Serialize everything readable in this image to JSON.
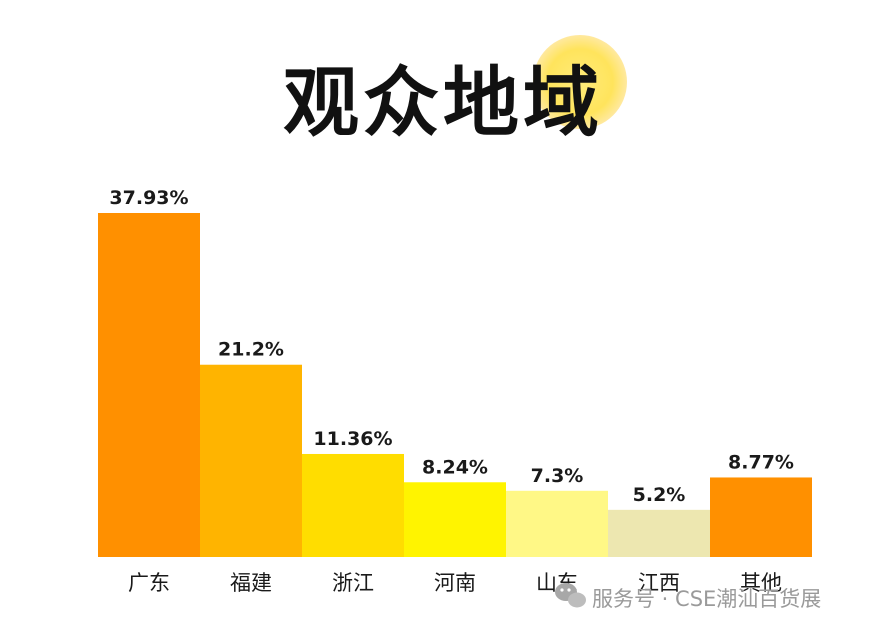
{
  "title": "观众地域",
  "watermark": "服务号 · CSE潮汕百货展",
  "chart_data": {
    "type": "bar",
    "categories": [
      "广东",
      "福建",
      "浙江",
      "河南",
      "山东",
      "江西",
      "其他"
    ],
    "values": [
      37.93,
      21.2,
      11.36,
      8.24,
      7.3,
      5.2,
      8.77
    ],
    "value_labels": [
      "37.93%",
      "21.2%",
      "11.36%",
      "8.24%",
      "7.3%",
      "5.2%",
      "8.77%"
    ],
    "colors": [
      "#FF9000",
      "#FFB400",
      "#FFDD00",
      "#FFF400",
      "#FFF886",
      "#EDE7B0",
      "#FF9000"
    ],
    "title": "观众地域",
    "xlabel": "",
    "ylabel": "",
    "grid": false,
    "legend": "none"
  }
}
